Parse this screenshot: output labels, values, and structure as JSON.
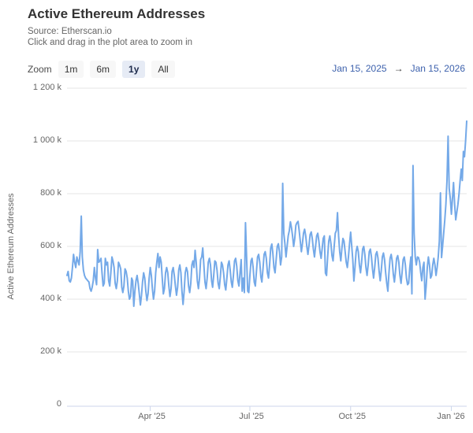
{
  "header": {
    "title": "Active Ethereum Addresses",
    "subtitle_source": "Source: Etherscan.io",
    "subtitle_hint": "Click and drag in the plot area to zoom in"
  },
  "toolbar": {
    "zoom_label": "Zoom",
    "buttons": [
      {
        "label": "1m",
        "selected": false
      },
      {
        "label": "6m",
        "selected": false
      },
      {
        "label": "1y",
        "selected": true
      },
      {
        "label": "All",
        "selected": false
      }
    ],
    "range_from": "Jan 15, 2025",
    "range_arrow": "→",
    "range_to": "Jan 15, 2026"
  },
  "colors": {
    "line": "#74a9e8",
    "grid": "#e6e6e6",
    "axis_line": "#ccd6eb",
    "label": "#666666",
    "date_link": "#3e62ad"
  },
  "chart_data": {
    "type": "line",
    "title": "Active Ethereum Addresses",
    "ylabel": "Active Ethereum Addresses",
    "x_unit": "days since Jan 15, 2025 (daily values)",
    "x_range_days": 365,
    "ylim": [
      0,
      1200000
    ],
    "grid": true,
    "legend": false,
    "y_ticks": [
      {
        "value_k": 0,
        "label": "0"
      },
      {
        "value_k": 200,
        "label": "200 k"
      },
      {
        "value_k": 400,
        "label": "400 k"
      },
      {
        "value_k": 600,
        "label": "600 k"
      },
      {
        "value_k": 800,
        "label": "800 k"
      },
      {
        "value_k": 1000,
        "label": "1 000 k"
      },
      {
        "value_k": 1200,
        "label": "1 200 k"
      }
    ],
    "x_ticks": [
      {
        "day": 76,
        "label": "Apr '25"
      },
      {
        "day": 167,
        "label": "Jul '25"
      },
      {
        "day": 259,
        "label": "Oct '25"
      },
      {
        "day": 351,
        "label": "Jan '26"
      }
    ],
    "series": [
      {
        "name": "Active Ethereum Addresses",
        "unit": "thousands of addresses",
        "values_k": [
          490,
          505,
          470,
          465,
          480,
          520,
          570,
          540,
          520,
          560,
          545,
          530,
          580,
          715,
          560,
          510,
          490,
          480,
          475,
          470,
          465,
          440,
          430,
          445,
          470,
          520,
          480,
          455,
          588,
          540,
          545,
          555,
          500,
          450,
          460,
          555,
          530,
          540,
          470,
          450,
          500,
          560,
          545,
          520,
          460,
          440,
          470,
          540,
          530,
          515,
          445,
          425,
          450,
          515,
          505,
          480,
          430,
          400,
          410,
          480,
          470,
          373,
          430,
          470,
          490,
          460,
          420,
          378,
          415,
          465,
          500,
          480,
          430,
          395,
          420,
          480,
          520,
          490,
          440,
          400,
          430,
          500,
          540,
          573,
          520,
          560,
          540,
          480,
          420,
          440,
          500,
          520,
          500,
          450,
          410,
          440,
          505,
          520,
          490,
          450,
          415,
          445,
          510,
          530,
          500,
          430,
          380,
          430,
          500,
          520,
          505,
          450,
          425,
          460,
          530,
          545,
          520,
          585,
          540,
          470,
          440,
          480,
          550,
          560,
          594,
          530,
          465,
          440,
          480,
          540,
          555,
          530,
          470,
          445,
          490,
          545,
          540,
          510,
          460,
          440,
          485,
          540,
          530,
          500,
          455,
          435,
          480,
          530,
          545,
          510,
          465,
          445,
          490,
          545,
          555,
          525,
          470,
          450,
          500,
          550,
          430,
          480,
          425,
          690,
          560,
          430,
          425,
          490,
          545,
          555,
          520,
          465,
          450,
          505,
          560,
          570,
          540,
          485,
          465,
          515,
          570,
          580,
          555,
          500,
          480,
          530,
          594,
          609,
          575,
          520,
          500,
          550,
          600,
          610,
          580,
          530,
          560,
          839,
          650,
          610,
          560,
          600,
          640,
          660,
          693,
          670,
          640,
          600,
          630,
          680,
          690,
          695,
          660,
          620,
          580,
          610,
          650,
          665,
          640,
          600,
          570,
          605,
          645,
          655,
          630,
          590,
          560,
          600,
          640,
          650,
          620,
          580,
          555,
          590,
          630,
          640,
          499,
          490,
          560,
          620,
          640,
          610,
          565,
          545,
          600,
          650,
          660,
          728,
          640,
          580,
          545,
          590,
          630,
          620,
          580,
          540,
          520,
          560,
          610,
          654,
          600,
          550,
          469,
          520,
          580,
          600,
          580,
          530,
          500,
          540,
          590,
          600,
          570,
          520,
          490,
          530,
          580,
          590,
          560,
          515,
          480,
          520,
          570,
          580,
          555,
          505,
          470,
          510,
          560,
          575,
          550,
          500,
          460,
          430,
          500,
          555,
          570,
          545,
          495,
          465,
          505,
          555,
          565,
          540,
          490,
          460,
          500,
          550,
          560,
          530,
          480,
          455,
          460,
          520,
          560,
          420,
          907,
          650,
          560,
          530,
          560,
          558,
          540,
          500,
          470,
          520,
          540,
          400,
          450,
          520,
          560,
          530,
          480,
          490,
          530,
          555,
          530,
          490,
          520,
          560,
          620,
          803,
          558,
          600,
          650,
          700,
          760,
          850,
          1018,
          820,
          782,
          722,
          780,
          842,
          760,
          701,
          730,
          760,
          800,
          850,
          893,
          850,
          960,
          940,
          1000,
          1075
        ]
      }
    ]
  }
}
